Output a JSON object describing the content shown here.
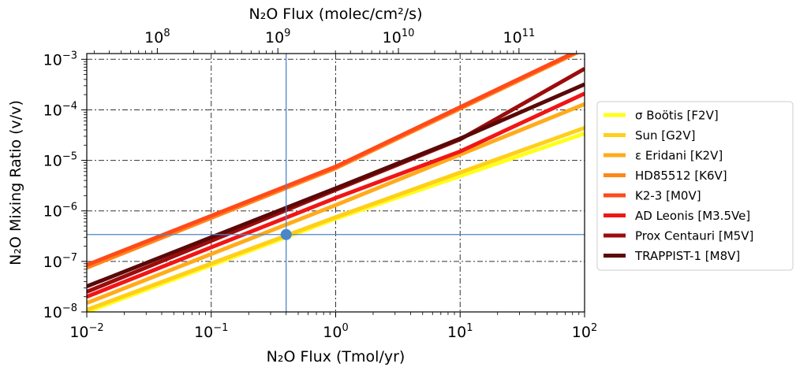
{
  "chart_data": {
    "type": "line",
    "xlabel": "N₂O Flux (Tmol/yr)",
    "ylabel": "N₂O Mixing Ratio (v/v)",
    "top_xlabel": "N₂O Flux (molec/cm²/s)",
    "x_scale": "log",
    "y_scale": "log",
    "xlim": [
      0.01,
      100
    ],
    "ylim": [
      1e-08,
      0.0013
    ],
    "top_xlim": [
      26000000,
      350000000000
    ],
    "grid": true,
    "legend_placement": "outside-right",
    "x_ticks": [
      {
        "value": 0.01,
        "base": "10",
        "exp": "−2"
      },
      {
        "value": 0.1,
        "base": "10",
        "exp": "−1"
      },
      {
        "value": 1,
        "base": "10",
        "exp": "0"
      },
      {
        "value": 10,
        "base": "10",
        "exp": "1"
      },
      {
        "value": 100,
        "base": "10",
        "exp": "2"
      }
    ],
    "y_ticks": [
      {
        "value": 1e-08,
        "base": "10",
        "exp": "−8"
      },
      {
        "value": 1e-07,
        "base": "10",
        "exp": "−7"
      },
      {
        "value": 1e-06,
        "base": "10",
        "exp": "−6"
      },
      {
        "value": 1e-05,
        "base": "10",
        "exp": "−5"
      },
      {
        "value": 0.0001,
        "base": "10",
        "exp": "−4"
      },
      {
        "value": 0.001,
        "base": "10",
        "exp": "−3"
      }
    ],
    "top_ticks": [
      {
        "value": 100000000,
        "base": "10",
        "exp": "8"
      },
      {
        "value": 1000000000,
        "base": "10",
        "exp": "9"
      },
      {
        "value": 10000000000,
        "base": "10",
        "exp": "10"
      },
      {
        "value": 100000000000,
        "base": "10",
        "exp": "11"
      }
    ],
    "reference_point": {
      "x": 0.4,
      "y": 3.4e-07,
      "color": "#4a86c8"
    },
    "series": [
      {
        "name": "σ Boötis [F2V]",
        "color": "#ffff1a",
        "points": [
          [
            0.01,
            1e-08
          ],
          [
            1,
            7e-07
          ],
          [
            100,
            3.4e-05
          ]
        ]
      },
      {
        "name": "Sun [G2V]",
        "color": "#ffcf1a",
        "points": [
          [
            0.01,
            1.1e-08
          ],
          [
            1,
            7.5e-07
          ],
          [
            100,
            4.4e-05
          ]
        ]
      },
      {
        "name": "ε Eridani [K2V]",
        "color": "#ffab1a",
        "points": [
          [
            0.01,
            1.5e-08
          ],
          [
            1,
            1.3e-06
          ],
          [
            100,
            0.00013
          ]
        ]
      },
      {
        "name": "HD85512 [K6V]",
        "color": "#ff871a",
        "points": [
          [
            0.01,
            7.5e-08
          ],
          [
            1,
            7e-06
          ],
          [
            100,
            0.0016
          ]
        ]
      },
      {
        "name": "K2-3 [M0V]",
        "color": "#ff4a1a",
        "points": [
          [
            0.01,
            8.5e-08
          ],
          [
            1,
            7.5e-06
          ],
          [
            100,
            0.0017
          ]
        ]
      },
      {
        "name": "AD Leonis [M3.5Ve]",
        "color": "#f01616",
        "points": [
          [
            0.01,
            2e-08
          ],
          [
            1,
            1.8e-06
          ],
          [
            10,
            1.5e-05
          ],
          [
            100,
            0.00021
          ]
        ]
      },
      {
        "name": "Prox Centauri [M5V]",
        "color": "#9c0c0c",
        "points": [
          [
            0.01,
            2.5e-08
          ],
          [
            1,
            2.6e-06
          ],
          [
            10,
            2.6e-05
          ],
          [
            100,
            0.00065
          ]
        ]
      },
      {
        "name": "TRAPPIST-1 [M8V]",
        "color": "#5a0808",
        "points": [
          [
            0.01,
            3.2e-08
          ],
          [
            1,
            2.8e-06
          ],
          [
            10,
            2.7e-05
          ],
          [
            100,
            0.00032
          ]
        ]
      }
    ]
  }
}
